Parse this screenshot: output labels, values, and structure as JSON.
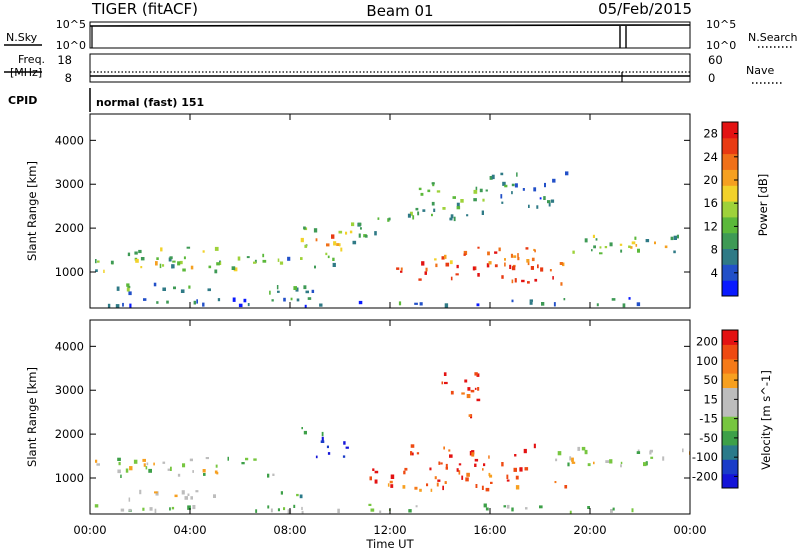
{
  "header": {
    "radar": "TIGER (fitACF)",
    "beam": "Beam 01",
    "date": "05/Feb/2015"
  },
  "top_panels": {
    "nsky": {
      "label": "N.Sky",
      "ticks": [
        "10^5",
        "10^0"
      ]
    },
    "nsearch": {
      "label": "N.Search",
      "ticks": [
        "10^5",
        "10^0"
      ]
    },
    "freq": {
      "label": "Freq.",
      "unit": "[MHz]",
      "ticks": [
        "18",
        "8"
      ]
    },
    "nave": {
      "label": "Nave",
      "ticks": [
        "60",
        "0"
      ]
    },
    "cpid": {
      "label": "CPID",
      "value": "normal (fast) 151"
    }
  },
  "chart_data": [
    {
      "type": "heatmap",
      "panel": "power",
      "xlabel": "Time UT",
      "ylabel": "Slant Range [km]",
      "x_ticks": [
        "00:00",
        "04:00",
        "08:00",
        "12:00",
        "16:00",
        "20:00",
        "00:00"
      ],
      "xlim": [
        0,
        24
      ],
      "y_ticks": [
        "1000",
        "2000",
        "3000",
        "4000"
      ],
      "ylim": [
        180,
        4600
      ],
      "colorbar": {
        "label": "Power [dB]",
        "ticks": [
          "4",
          "8",
          "12",
          "16",
          "20",
          "24",
          "28"
        ],
        "range": [
          0,
          30
        ],
        "colors": [
          "#0a1aff",
          "#2250c8",
          "#2f7a86",
          "#3e9a55",
          "#5bb83a",
          "#9ed23a",
          "#f2d22a",
          "#f5a020",
          "#f07018",
          "#e83a12",
          "#e21212"
        ]
      },
      "regions": [
        {
          "t0": 0.2,
          "t1": 6.2,
          "r0": 1050,
          "r1": 1600,
          "level": 0.4
        },
        {
          "t0": 6.2,
          "t1": 10.0,
          "r0": 1050,
          "r1": 1450,
          "level": 0.35
        },
        {
          "t0": 0.5,
          "t1": 4.5,
          "r0": 1050,
          "r1": 1300,
          "level": 0.55
        },
        {
          "t0": 1.0,
          "t1": 5.0,
          "r0": 520,
          "r1": 820,
          "level": 0.3
        },
        {
          "t0": 6.5,
          "t1": 9.0,
          "r0": 550,
          "r1": 900,
          "level": 0.3
        },
        {
          "t0": 8.3,
          "t1": 11.0,
          "r0": 1550,
          "r1": 2050,
          "level": 0.45
        },
        {
          "t0": 9.0,
          "t1": 10.3,
          "r0": 1600,
          "r1": 2000,
          "level": 0.8
        },
        {
          "t0": 10.0,
          "t1": 12.0,
          "r0": 1700,
          "r1": 2300,
          "level": 0.35
        },
        {
          "t0": 12.0,
          "t1": 19.0,
          "r0": 750,
          "r1": 1250,
          "level": 0.88
        },
        {
          "t0": 13.5,
          "t1": 18.5,
          "r0": 1150,
          "r1": 1700,
          "level": 0.78
        },
        {
          "t0": 12.5,
          "t1": 16.0,
          "r0": 2200,
          "r1": 3200,
          "level": 0.35
        },
        {
          "t0": 19.0,
          "t1": 24.0,
          "r0": 1450,
          "r1": 1850,
          "level": 0.4
        },
        {
          "t0": 20.0,
          "t1": 23.0,
          "r0": 1500,
          "r1": 1750,
          "level": 0.62
        },
        {
          "t0": 0.0,
          "t1": 24.0,
          "r0": 250,
          "r1": 430,
          "level": 0.2
        },
        {
          "t0": 16.0,
          "t1": 19.0,
          "r0": 2500,
          "r1": 3300,
          "level": 0.22
        }
      ]
    },
    {
      "type": "heatmap",
      "panel": "velocity",
      "xlabel": "Time UT",
      "ylabel": "Slant Range [km]",
      "x_ticks": [
        "00:00",
        "04:00",
        "08:00",
        "12:00",
        "16:00",
        "20:00",
        "00:00"
      ],
      "xlim": [
        0,
        24
      ],
      "y_ticks": [
        "1000",
        "2000",
        "3000",
        "4000"
      ],
      "ylim": [
        180,
        4600
      ],
      "colorbar": {
        "label": "Velocity [m s^-1]",
        "ticks": [
          "200",
          "100",
          "50",
          "15",
          "-15",
          "-50",
          "-100",
          "-200"
        ],
        "range": [
          -250,
          250
        ],
        "colors": [
          "#1414d8",
          "#1a3cc8",
          "#2a7a8a",
          "#3da048",
          "#77c640",
          "#bdbdbd",
          "#bdbdbd",
          "#f7a020",
          "#f57a18",
          "#ee4a12",
          "#e31212"
        ]
      },
      "regions": [
        {
          "t0": 0.2,
          "t1": 8.5,
          "r0": 1050,
          "r1": 1500,
          "level": 0.5
        },
        {
          "t0": 1.0,
          "t1": 5.0,
          "r0": 520,
          "r1": 820,
          "level": 0.52
        },
        {
          "t0": 8.3,
          "t1": 9.7,
          "r0": 2000,
          "r1": 2200,
          "level": 0.18
        },
        {
          "t0": 9.0,
          "t1": 11.0,
          "r0": 1500,
          "r1": 1950,
          "level": 0.05
        },
        {
          "t0": 11.0,
          "t1": 19.0,
          "r0": 750,
          "r1": 1250,
          "level": 0.85
        },
        {
          "t0": 12.5,
          "t1": 18.0,
          "r0": 1200,
          "r1": 1800,
          "level": 0.92
        },
        {
          "t0": 14.0,
          "t1": 15.5,
          "r0": 2400,
          "r1": 3600,
          "level": 0.95
        },
        {
          "t0": 18.5,
          "t1": 24.0,
          "r0": 1300,
          "r1": 1800,
          "level": 0.5
        },
        {
          "t0": 7.5,
          "t1": 9.0,
          "r0": 500,
          "r1": 750,
          "level": 0.25
        },
        {
          "t0": 0.0,
          "t1": 24.0,
          "r0": 250,
          "r1": 430,
          "level": 0.45
        }
      ]
    }
  ]
}
